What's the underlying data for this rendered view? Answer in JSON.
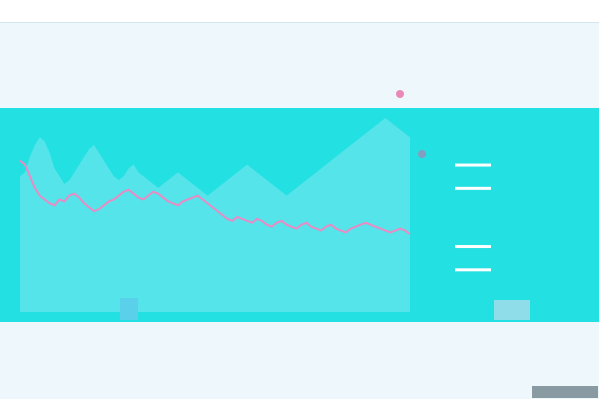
{
  "ticker_bar": [
    {
      "symbol": "",
      "change": "",
      "direction": "up"
    },
    {
      "symbol": "",
      "change": "",
      "direction": "down"
    },
    {
      "symbol": "",
      "change": "",
      "direction": "up"
    },
    {
      "symbol": "",
      "change": "",
      "direction": "up"
    },
    {
      "symbol": "",
      "change": "",
      "direction": "down"
    }
  ],
  "brand_text": "",
  "colors": {
    "panel": "#23e0e2",
    "price_line": "#e98bc4",
    "volume_band": "#7fe8ee",
    "grid": "#ffffff",
    "markers": "#ffffff"
  },
  "chart_data": {
    "type": "line",
    "title": "",
    "xlabel": "",
    "ylabel": "",
    "x": [
      0,
      1,
      2,
      3,
      4,
      5,
      6,
      7,
      8,
      9,
      10,
      11,
      12,
      13,
      14,
      15,
      16,
      17,
      18,
      19,
      20,
      21,
      22,
      23,
      24,
      25,
      26,
      27,
      28,
      29,
      30,
      31,
      32,
      33,
      34,
      35,
      36,
      37,
      38,
      39,
      40,
      41,
      42,
      43,
      44,
      45,
      46,
      47,
      48,
      49,
      50,
      51,
      52,
      53,
      54,
      55,
      56,
      57,
      58,
      59,
      60,
      61,
      62,
      63,
      64,
      65,
      66,
      67,
      68,
      69,
      70,
      71,
      72,
      73,
      74,
      75,
      76,
      77,
      78,
      79
    ],
    "ylim": [
      0,
      100
    ],
    "series": [
      {
        "name": "",
        "values": [
          78,
          76,
          70,
          64,
          60,
          58,
          56,
          55,
          58,
          57,
          60,
          61,
          59,
          56,
          54,
          52,
          53,
          55,
          57,
          58,
          60,
          62,
          63,
          61,
          59,
          58,
          60,
          62,
          61,
          59,
          57,
          56,
          55,
          57,
          58,
          59,
          60,
          58,
          56,
          54,
          52,
          50,
          48,
          47,
          49,
          48,
          47,
          46,
          48,
          47,
          45,
          44,
          46,
          47,
          45,
          44,
          43,
          45,
          46,
          44,
          43,
          42,
          44,
          45,
          43,
          42,
          41,
          43,
          44,
          45,
          46,
          45,
          44,
          43,
          42,
          41,
          42,
          43,
          42,
          40
        ]
      }
    ],
    "volume_band_upper": [
      70,
      72,
      80,
      86,
      90,
      88,
      82,
      74,
      70,
      66,
      68,
      72,
      76,
      80,
      84,
      86,
      82,
      78,
      74,
      70,
      68,
      70,
      74,
      76,
      72,
      70,
      68,
      66,
      64,
      66,
      68,
      70,
      72,
      70,
      68,
      66,
      64,
      62,
      60,
      62,
      64,
      66,
      68,
      70,
      72,
      74,
      76,
      74,
      72,
      70,
      68,
      66,
      64,
      62,
      60,
      62,
      64,
      66,
      68,
      70,
      72,
      74,
      76,
      78,
      80,
      82,
      84,
      86,
      88,
      90,
      92,
      94,
      96,
      98,
      100,
      98,
      96,
      94,
      92,
      90
    ],
    "grid": false,
    "legend": "none",
    "markers_right": [
      {
        "y": 76
      },
      {
        "y": 64
      },
      {
        "y": 34
      },
      {
        "y": 22
      }
    ]
  }
}
